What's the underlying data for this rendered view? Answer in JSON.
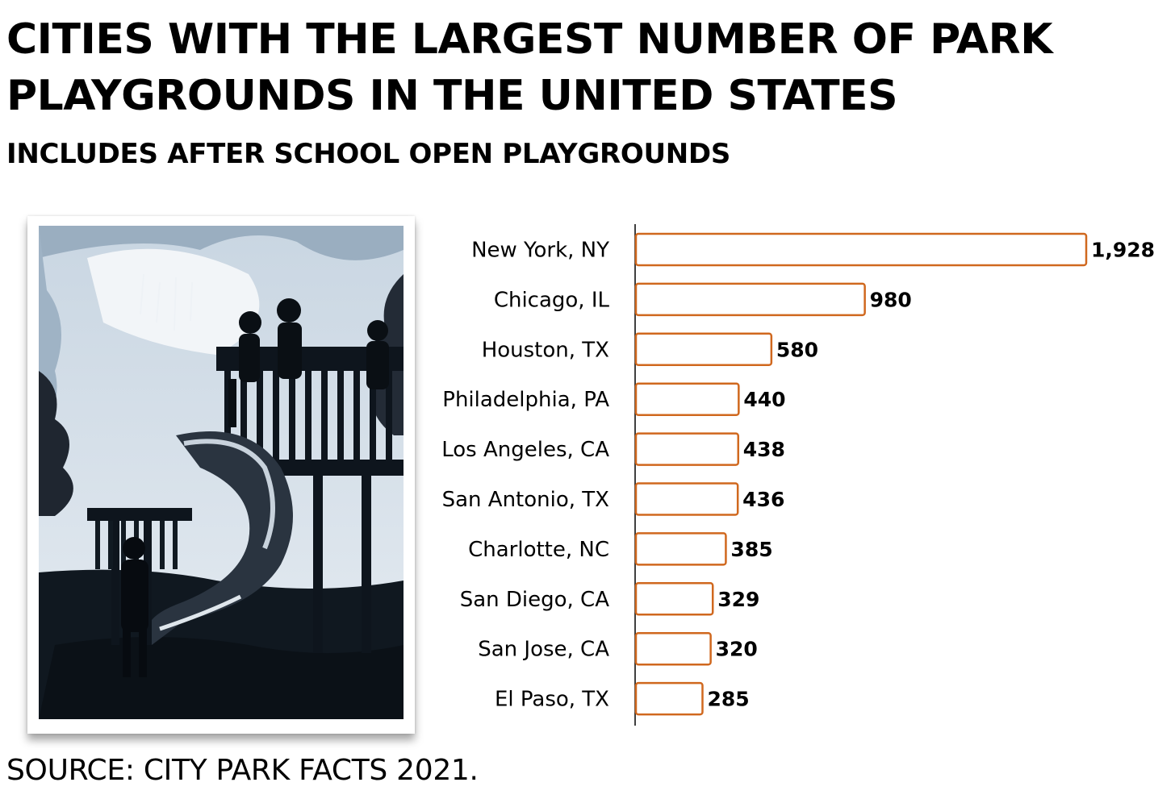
{
  "header": {
    "title": "CITIES WITH THE LARGEST NUMBER OF PARK PLAYGROUNDS IN THE UNITED STATES",
    "subtitle": "INCLUDES AFTER SCHOOL OPEN PLAYGROUNDS"
  },
  "footer": {
    "source": "SOURCE: CITY PARK FACTS 2021."
  },
  "colors": {
    "bar_stroke": "#d0681e",
    "bar_fill": "#ffffff",
    "axis": "#000000"
  },
  "chart_data": {
    "type": "bar",
    "orientation": "horizontal",
    "categories": [
      "New York, NY",
      "Chicago, IL",
      "Houston, TX",
      "Philadelphia, PA",
      "Los Angeles, CA",
      "San Antonio, TX",
      "Charlotte, NC",
      "San Diego, CA",
      "San Jose, CA",
      "El Paso, TX"
    ],
    "values": [
      1928,
      980,
      580,
      440,
      438,
      436,
      385,
      329,
      320,
      285
    ],
    "value_labels": [
      "1,928",
      "980",
      "580",
      "440",
      "438",
      "436",
      "385",
      "329",
      "320",
      "285"
    ],
    "xlim": [
      0,
      1928
    ],
    "grid": false,
    "legend": "none"
  }
}
